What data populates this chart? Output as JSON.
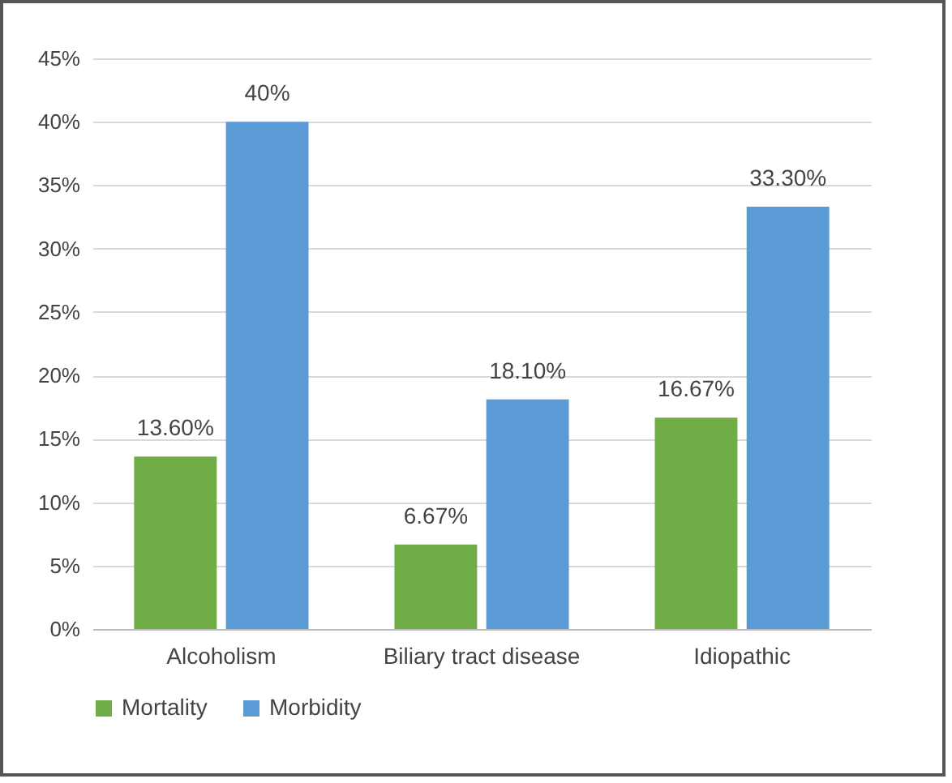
{
  "chart_data": {
    "type": "bar",
    "categories": [
      "Alcoholism",
      "Biliary tract disease",
      "Idiopathic"
    ],
    "series": [
      {
        "name": "Mortality",
        "color": "#70ad47",
        "values": [
          13.6,
          6.67,
          16.67
        ],
        "value_labels": [
          "13.60%",
          "6.67%",
          "16.67%"
        ]
      },
      {
        "name": "Morbidity",
        "color": "#5b9bd5",
        "values": [
          40,
          18.1,
          33.3
        ],
        "value_labels": [
          "40%",
          "18.10%",
          "33.30%"
        ]
      }
    ],
    "ylim": [
      0,
      45
    ],
    "yticks": [
      {
        "value": 0,
        "label": "0%"
      },
      {
        "value": 5,
        "label": "5%"
      },
      {
        "value": 10,
        "label": "10%"
      },
      {
        "value": 15,
        "label": "15%"
      },
      {
        "value": 20,
        "label": "20%"
      },
      {
        "value": 25,
        "label": "25%"
      },
      {
        "value": 30,
        "label": "30%"
      },
      {
        "value": 35,
        "label": "35%"
      },
      {
        "value": 40,
        "label": "40%"
      },
      {
        "value": 45,
        "label": "45%"
      }
    ],
    "grid": "y",
    "legend": "bottom"
  }
}
